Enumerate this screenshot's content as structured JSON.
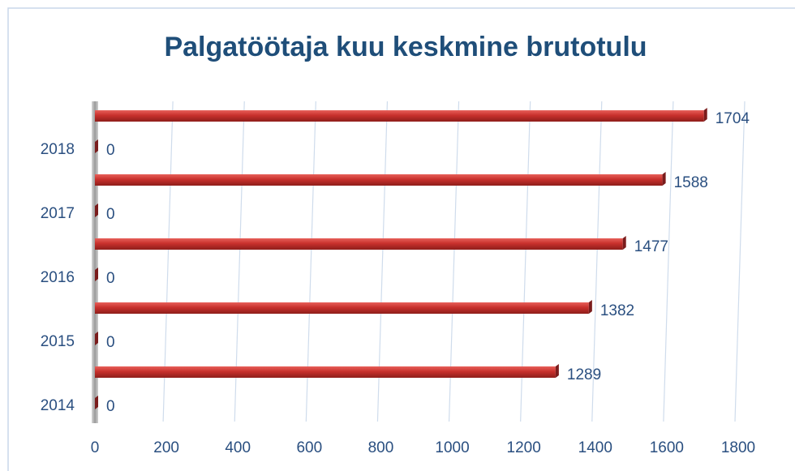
{
  "chart_data": {
    "type": "bar",
    "orientation": "horizontal",
    "title": "Palgatöötaja kuu keskmine brutotulu",
    "categories": [
      "2014",
      "2015",
      "2016",
      "2017",
      "2018"
    ],
    "series": [
      {
        "color": "#7a1c1c",
        "values": [
          0,
          0,
          0,
          0,
          0
        ]
      },
      {
        "color": "#c8302c",
        "values": [
          1289,
          1382,
          1477,
          1588,
          1704
        ]
      }
    ],
    "xlim": [
      0,
      1800
    ],
    "xticks": [
      0,
      200,
      400,
      600,
      800,
      1000,
      1200,
      1400,
      1600,
      1800
    ],
    "grid": true
  }
}
